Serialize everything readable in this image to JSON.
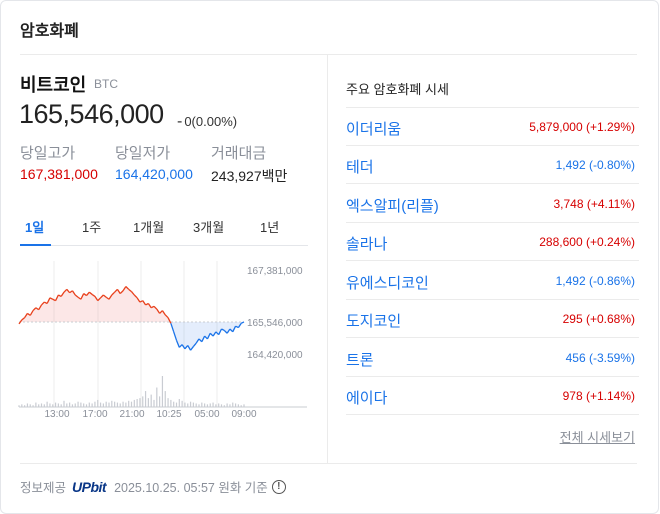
{
  "section_title": "암호화폐",
  "coin": {
    "name": "비트코인",
    "symbol": "BTC",
    "price": "165,546,000",
    "change_arrow": "-",
    "change": "0(0.00%)"
  },
  "stats": [
    {
      "label": "당일고가",
      "value": "167,381,000",
      "color": "#d60000"
    },
    {
      "label": "당일저가",
      "value": "164,420,000",
      "color": "#1a73e8"
    },
    {
      "label": "거래대금",
      "value": "243,927백만",
      "color": "#222222"
    }
  ],
  "tabs": [
    {
      "label": "1일",
      "active": true
    },
    {
      "label": "1주",
      "active": false
    },
    {
      "label": "1개월",
      "active": false
    },
    {
      "label": "3개월",
      "active": false
    },
    {
      "label": "1년",
      "active": false
    }
  ],
  "chart_data": {
    "type": "line",
    "y_ticks": [
      "167,381,000",
      "165,546,000",
      "164,420,000"
    ],
    "y_tick_values": [
      167381000,
      165546000,
      164420000
    ],
    "x_ticks": [
      "13:00",
      "17:00",
      "21:00",
      "10:25",
      "05:00",
      "09:00"
    ],
    "baseline": 165546000,
    "ylim": [
      164100000,
      167700000
    ],
    "series": [
      {
        "values": [
          165480000,
          165620000,
          165700000,
          165850000,
          165780000,
          165950000,
          166050000,
          165980000,
          166150000,
          166250000,
          166200000,
          166400000,
          166350000,
          166300000,
          166500000,
          166450000,
          166600000,
          166700000,
          166580000,
          166650000,
          166500000,
          166420000,
          166350000,
          166550000,
          166480000,
          166600000,
          166520000,
          166450000,
          166300000,
          166400000,
          166500000,
          166420000,
          166350000,
          166500000,
          166600000,
          166700000,
          166550000,
          166650000,
          166800000,
          166700000,
          166620000,
          166500000,
          166400000,
          166250000,
          166300000,
          166150000,
          166200000,
          166050000,
          166100000,
          166000000,
          165850000,
          165950000,
          165800000,
          165700000,
          165500000,
          165200000,
          164900000,
          164650000,
          164750000,
          164600000,
          164720000,
          164550000,
          164680000,
          164800000,
          164950000,
          164850000,
          165050000,
          164950000,
          165150000,
          165050000,
          165200000,
          165100000,
          165300000,
          165250000,
          165150000,
          165300000,
          165200000,
          165400000,
          165350000,
          165500000,
          165550000
        ]
      }
    ],
    "volume": [
      2,
      3,
      2,
      4,
      3,
      2,
      5,
      3,
      4,
      3,
      6,
      4,
      3,
      5,
      4,
      3,
      7,
      4,
      5,
      3,
      4,
      6,
      5,
      4,
      3,
      5,
      4,
      6,
      8,
      5,
      4,
      6,
      5,
      7,
      6,
      5,
      4,
      6,
      5,
      7,
      6,
      8,
      9,
      10,
      12,
      18,
      10,
      14,
      8,
      22,
      12,
      35,
      18,
      10,
      8,
      6,
      5,
      9,
      7,
      5,
      4,
      6,
      5,
      4,
      3,
      5,
      4,
      3,
      4,
      5,
      3,
      4,
      3,
      2,
      4,
      3,
      5,
      4,
      3,
      2,
      3
    ]
  },
  "market": {
    "title": "주요 암호화폐 시세",
    "rows": [
      {
        "name": "이더리움",
        "value": "5,879,000 (+1.29%)",
        "color": "#d60000"
      },
      {
        "name": "테더",
        "value": "1,492 (-0.80%)",
        "color": "#1a73e8"
      },
      {
        "name": "엑스알피(리플)",
        "value": "3,748 (+4.11%)",
        "color": "#d60000"
      },
      {
        "name": "솔라나",
        "value": "288,600 (+0.24%)",
        "color": "#d60000"
      },
      {
        "name": "유에스디코인",
        "value": "1,492 (-0.86%)",
        "color": "#1a73e8"
      },
      {
        "name": "도지코인",
        "value": "295 (+0.68%)",
        "color": "#d60000"
      },
      {
        "name": "트론",
        "value": "456 (-3.59%)",
        "color": "#1a73e8"
      },
      {
        "name": "에이다",
        "value": "978 (+1.14%)",
        "color": "#d60000"
      }
    ],
    "all_link": "전체 시세보기"
  },
  "footer": {
    "provider_label": "정보제공",
    "provider": "UPbit",
    "timestamp": "2025.10.25. 05:57 원화 기준",
    "info_icon": "!"
  }
}
